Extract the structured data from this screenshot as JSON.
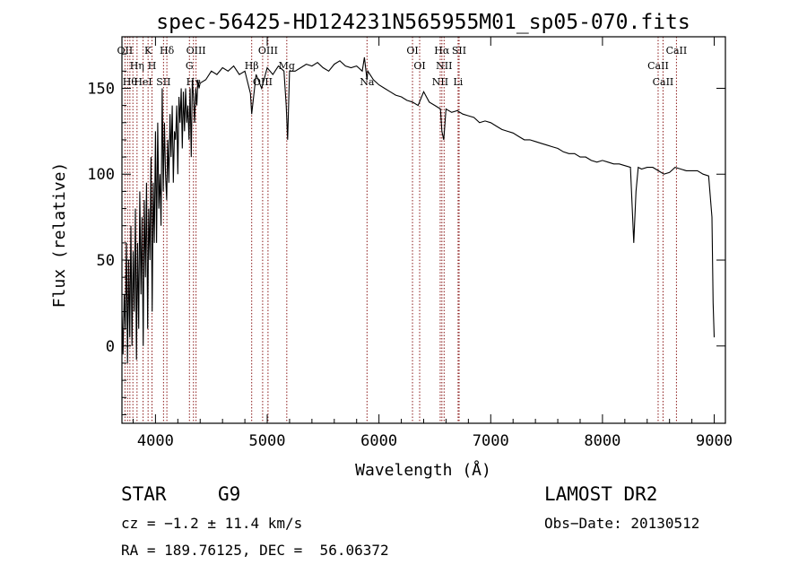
{
  "chart_data": {
    "type": "line",
    "title": "spec-56425-HD124231N565955M01_sp05-070.fits",
    "xlabel": "Wavelength (Å)",
    "ylabel": "Flux (relative)",
    "xlim": [
      3700,
      9100
    ],
    "ylim": [
      -45,
      180
    ],
    "x_ticks": [
      4000,
      5000,
      6000,
      7000,
      8000,
      9000
    ],
    "y_ticks": [
      0,
      50,
      100,
      150
    ],
    "grid": false,
    "series": [
      {
        "x": [
          3700,
          3710,
          3720,
          3730,
          3740,
          3750,
          3760,
          3770,
          3780,
          3790,
          3800,
          3810,
          3820,
          3830,
          3840,
          3850,
          3860,
          3870,
          3880,
          3890,
          3900,
          3910,
          3920,
          3930,
          3940,
          3950,
          3960,
          3970,
          3980,
          3990,
          4000,
          4010,
          4020,
          4030,
          4040,
          4050,
          4060,
          4070,
          4080,
          4090,
          4100,
          4110,
          4120,
          4130,
          4140,
          4150,
          4160,
          4170,
          4180,
          4190,
          4200,
          4210,
          4220,
          4230,
          4240,
          4250,
          4260,
          4270,
          4280,
          4290,
          4300,
          4310,
          4320,
          4330,
          4340,
          4350,
          4360,
          4370,
          4380,
          4390,
          4400,
          4450,
          4500,
          4550,
          4600,
          4650,
          4700,
          4750,
          4800,
          4850,
          4861,
          4900,
          4950,
          5000,
          5050,
          5100,
          5150,
          5170,
          5183,
          5200,
          5250,
          5300,
          5350,
          5400,
          5450,
          5500,
          5550,
          5600,
          5650,
          5700,
          5750,
          5800,
          5850,
          5870,
          5893,
          5900,
          5950,
          6000,
          6050,
          6100,
          6150,
          6200,
          6250,
          6300,
          6350,
          6400,
          6450,
          6500,
          6550,
          6563,
          6580,
          6600,
          6650,
          6700,
          6750,
          6800,
          6850,
          6900,
          6950,
          7000,
          7050,
          7100,
          7150,
          7200,
          7250,
          7300,
          7350,
          7400,
          7450,
          7500,
          7550,
          7600,
          7650,
          7700,
          7750,
          7800,
          7850,
          7900,
          7950,
          8000,
          8050,
          8100,
          8150,
          8200,
          8250,
          8280,
          8300,
          8320,
          8350,
          8400,
          8450,
          8500,
          8550,
          8600,
          8650,
          8700,
          8750,
          8800,
          8850,
          8900,
          8950,
          8980,
          8990,
          9000
        ],
        "y": [
          20,
          -5,
          30,
          10,
          60,
          -10,
          50,
          5,
          70,
          0,
          55,
          20,
          80,
          -8,
          60,
          10,
          90,
          30,
          75,
          0,
          85,
          40,
          95,
          10,
          80,
          50,
          110,
          20,
          95,
          60,
          125,
          60,
          130,
          80,
          100,
          70,
          150,
          90,
          130,
          100,
          85,
          120,
          95,
          135,
          110,
          140,
          95,
          125,
          120,
          140,
          100,
          145,
          130,
          150,
          115,
          148,
          125,
          150,
          130,
          140,
          120,
          150,
          110,
          155,
          145,
          130,
          150,
          140,
          155,
          150,
          153,
          155,
          160,
          158,
          162,
          160,
          163,
          158,
          160,
          147,
          135,
          158,
          150,
          162,
          158,
          163,
          160,
          140,
          120,
          160,
          160,
          162,
          164,
          163,
          165,
          162,
          160,
          164,
          166,
          163,
          162,
          163,
          160,
          168,
          155,
          160,
          155,
          152,
          150,
          148,
          146,
          145,
          143,
          142,
          140,
          148,
          142,
          140,
          138,
          125,
          120,
          138,
          136,
          137,
          135,
          134,
          133,
          130,
          131,
          130,
          128,
          126,
          125,
          124,
          122,
          120,
          120,
          119,
          118,
          117,
          116,
          115,
          113,
          112,
          112,
          110,
          110,
          108,
          107,
          108,
          107,
          106,
          106,
          105,
          104,
          60,
          90,
          104,
          103,
          104,
          104,
          102,
          100,
          101,
          104,
          103,
          102,
          102,
          102,
          100,
          99,
          75,
          25,
          5
        ]
      }
    ],
    "lines": [
      {
        "x": 3727,
        "labels": [
          "OII"
        ]
      },
      {
        "x": 3750,
        "labels": [
          ""
        ]
      },
      {
        "x": 3771,
        "labels": [
          "Hθ"
        ]
      },
      {
        "x": 3798,
        "labels": [
          ""
        ]
      },
      {
        "x": 3835,
        "labels": [
          "Hη"
        ]
      },
      {
        "x": 3889,
        "labels": [
          "HeI"
        ]
      },
      {
        "x": 3934,
        "labels": [
          "K"
        ]
      },
      {
        "x": 3969,
        "labels": [
          "H"
        ]
      },
      {
        "x": 4072,
        "labels": [
          "SII"
        ]
      },
      {
        "x": 4102,
        "labels": [
          "Hδ"
        ]
      },
      {
        "x": 4304,
        "labels": [
          "G"
        ]
      },
      {
        "x": 4340,
        "labels": [
          "Hγ"
        ]
      },
      {
        "x": 4363,
        "labels": [
          "OIII"
        ]
      },
      {
        "x": 4861,
        "labels": [
          "Hβ"
        ]
      },
      {
        "x": 4959,
        "labels": [
          "OIII"
        ]
      },
      {
        "x": 5007,
        "labels": [
          "OIII"
        ]
      },
      {
        "x": 5175,
        "labels": [
          "Mg"
        ]
      },
      {
        "x": 5893,
        "labels": [
          "Na"
        ]
      },
      {
        "x": 6300,
        "labels": [
          "OI"
        ]
      },
      {
        "x": 6364,
        "labels": [
          "OI"
        ]
      },
      {
        "x": 6548,
        "labels": [
          "NII"
        ]
      },
      {
        "x": 6563,
        "labels": [
          "Hα"
        ]
      },
      {
        "x": 6583,
        "labels": [
          "NII"
        ]
      },
      {
        "x": 6708,
        "labels": [
          "Li"
        ]
      },
      {
        "x": 6717,
        "labels": [
          "SII"
        ]
      },
      {
        "x": 8498,
        "labels": [
          "CaII"
        ]
      },
      {
        "x": 8542,
        "labels": [
          "CaII"
        ]
      },
      {
        "x": 8662,
        "labels": [
          "CaII"
        ]
      }
    ]
  },
  "info": {
    "class": "STAR",
    "subclass": "G9",
    "survey": "LAMOST DR2",
    "cz": "cz = −1.2 ± 11.4 km/s",
    "obs_date": "Obs−Date: 20130512",
    "coords": "RA = 189.76125, DEC =  56.06372"
  }
}
